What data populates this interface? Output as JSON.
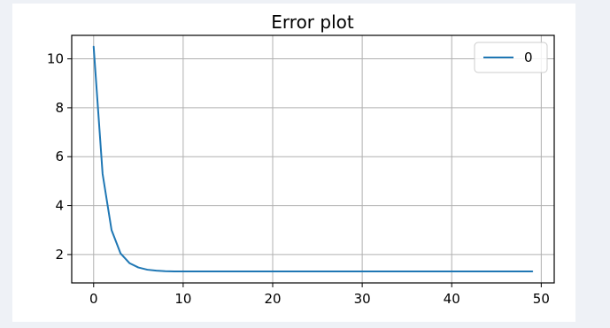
{
  "chart_data": {
    "type": "line",
    "title": "Error plot",
    "xlabel": "",
    "ylabel": "",
    "xlim": [
      -2.45,
      51.45
    ],
    "ylim": [
      0.84,
      10.96
    ],
    "x_ticks": [
      0,
      10,
      20,
      30,
      40,
      50
    ],
    "y_ticks": [
      2,
      4,
      6,
      8,
      10
    ],
    "grid": true,
    "legend": {
      "position": "top-right",
      "entries": [
        "0"
      ]
    },
    "series": [
      {
        "name": "0",
        "color": "#1f77b4",
        "x": [
          0,
          1,
          2,
          3,
          4,
          5,
          6,
          7,
          8,
          9,
          10,
          11,
          12,
          13,
          14,
          15,
          16,
          17,
          18,
          19,
          20,
          21,
          22,
          23,
          24,
          25,
          26,
          27,
          28,
          29,
          30,
          31,
          32,
          33,
          34,
          35,
          36,
          37,
          38,
          39,
          40,
          41,
          42,
          43,
          44,
          45,
          46,
          47,
          48,
          49
        ],
        "y": [
          10.5,
          5.3,
          3.0,
          2.05,
          1.65,
          1.47,
          1.38,
          1.34,
          1.32,
          1.31,
          1.31,
          1.31,
          1.31,
          1.31,
          1.31,
          1.31,
          1.31,
          1.31,
          1.31,
          1.31,
          1.31,
          1.31,
          1.31,
          1.31,
          1.31,
          1.31,
          1.31,
          1.31,
          1.31,
          1.31,
          1.31,
          1.31,
          1.31,
          1.31,
          1.31,
          1.31,
          1.31,
          1.31,
          1.31,
          1.31,
          1.31,
          1.31,
          1.31,
          1.31,
          1.31,
          1.31,
          1.31,
          1.31,
          1.31,
          1.31
        ]
      }
    ]
  }
}
